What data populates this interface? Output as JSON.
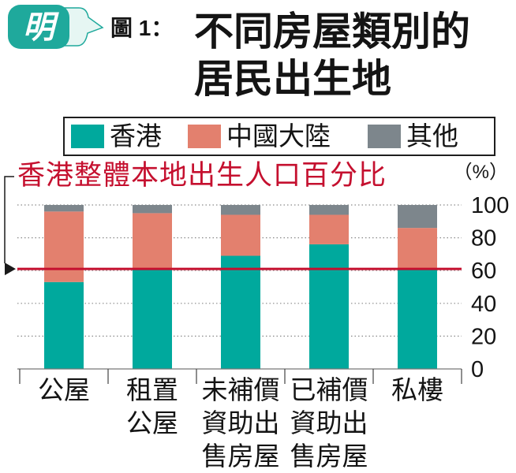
{
  "logo": {
    "text": "明",
    "color": "#1fa99c"
  },
  "chart_data": {
    "type": "bar",
    "stacked": true,
    "figure_label": "圖 1：",
    "title": "不同房屋類別的居民出生地",
    "categories": [
      "公屋",
      "租置公屋",
      "未補價資助出售房屋",
      "已補價資助出售房屋",
      "私樓"
    ],
    "series": [
      {
        "name": "香港",
        "color": "#00a99d",
        "values": [
          53,
          61,
          69,
          76,
          61
        ]
      },
      {
        "name": "中國大陸",
        "color": "#e3806e",
        "values": [
          43,
          34,
          25,
          18,
          25
        ]
      },
      {
        "name": "其他",
        "color": "#7d868c",
        "values": [
          4,
          5,
          6,
          6,
          14
        ]
      }
    ],
    "ylabel": "（%）",
    "ylim": [
      0,
      100
    ],
    "yticks": [
      0,
      20,
      40,
      60,
      80,
      100
    ],
    "y_axis_side": "right",
    "grid": true,
    "legend": "top",
    "reference_line": {
      "label": "香港整體本地出生人口百分比",
      "value": 61,
      "color": "#c5102f"
    }
  }
}
